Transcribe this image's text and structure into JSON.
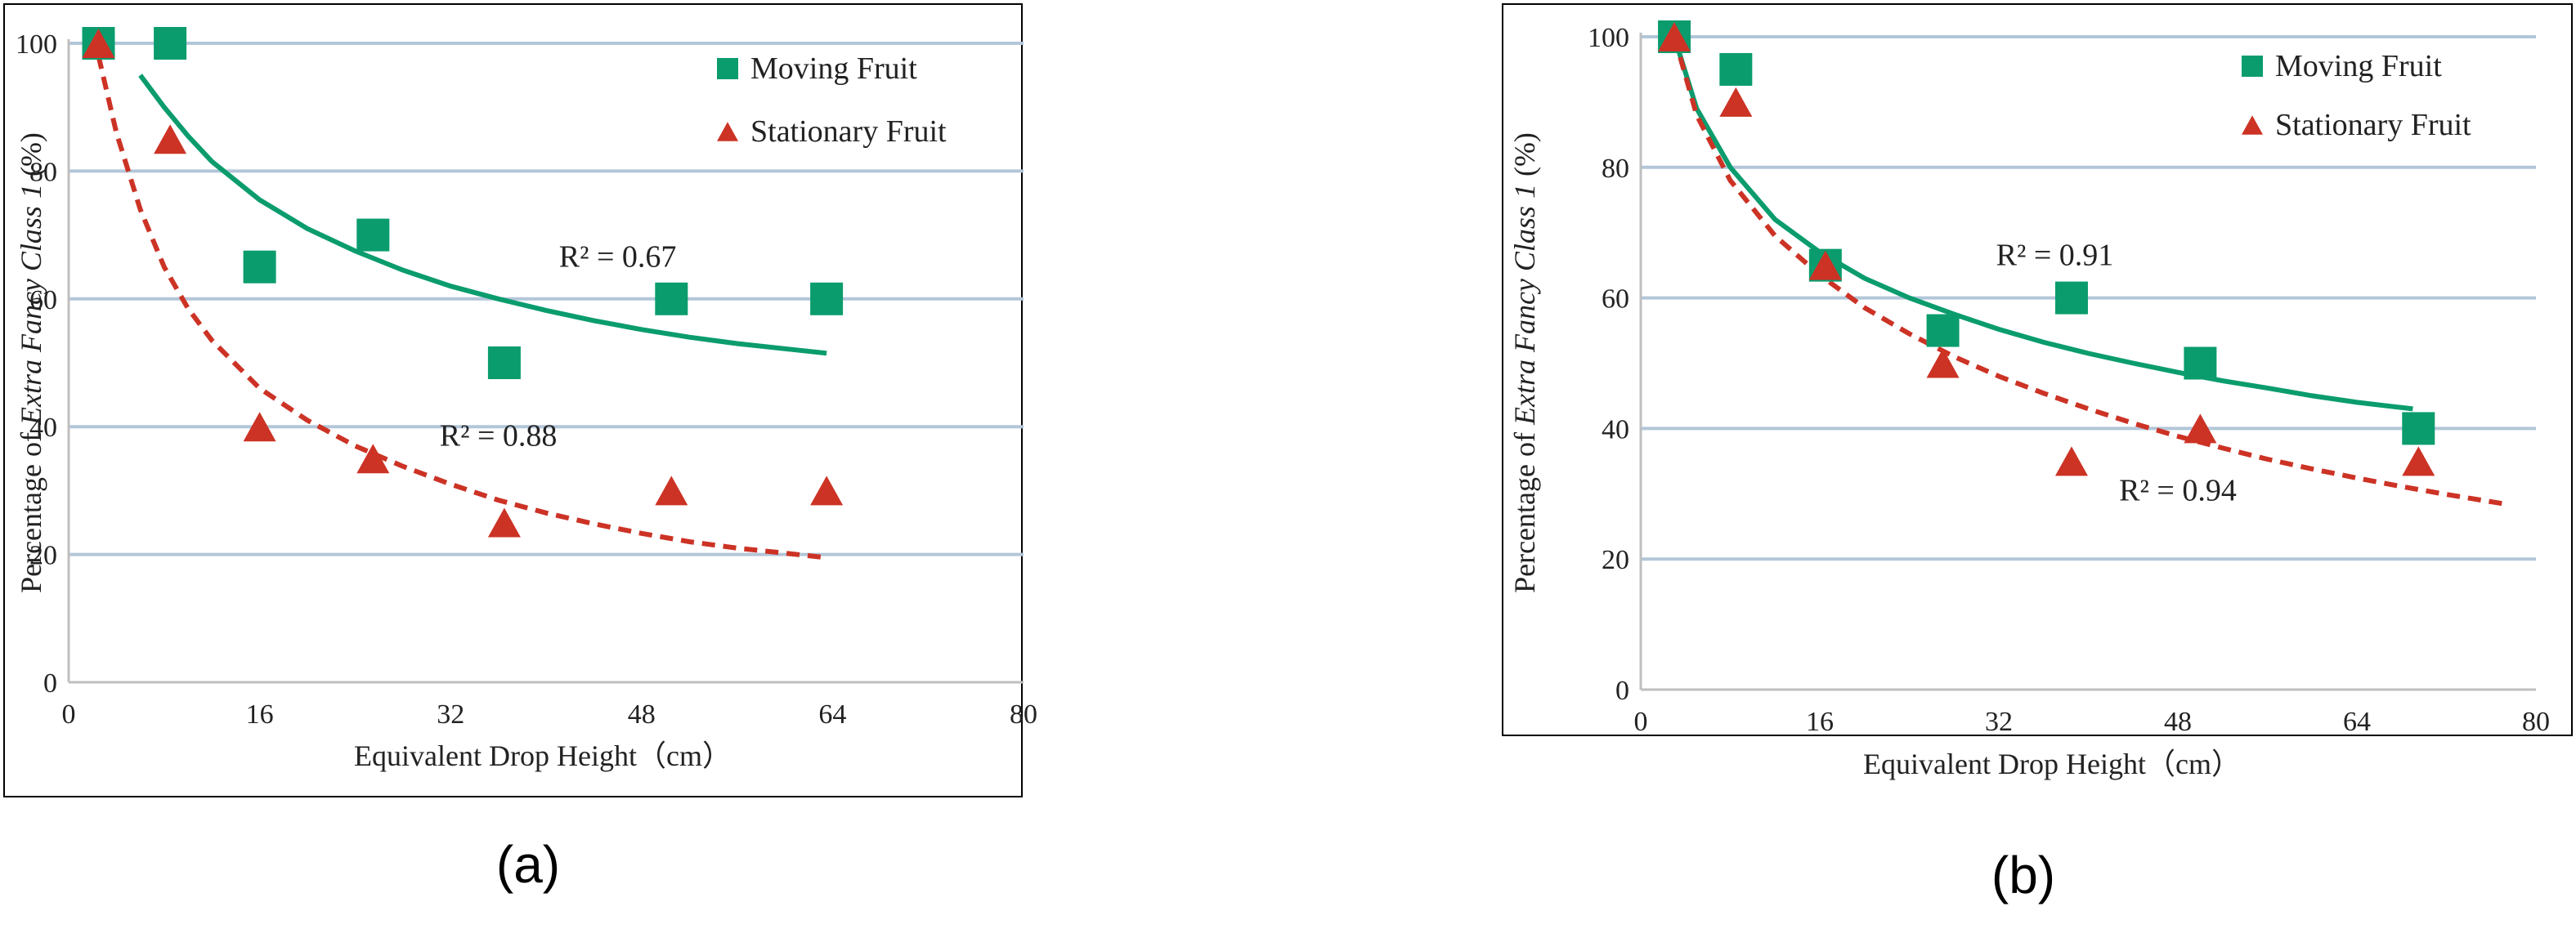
{
  "chart_data": [
    {
      "type": "scatter",
      "panel_label": "(a)",
      "xlabel": "Equivalent Drop Height（cm）",
      "ylabel_parts": [
        "Percentage of ",
        "Extra Fancy Class 1",
        " (%)"
      ],
      "xlim": [
        0,
        80
      ],
      "ylim": [
        0,
        100
      ],
      "xticks": [
        "0",
        "16",
        "32",
        "48",
        "64",
        "80"
      ],
      "yticks": [
        "0",
        "20",
        "40",
        "60",
        "80",
        "100"
      ],
      "legend": [
        "Moving Fruit",
        "Stationary Fruit"
      ],
      "colors": {
        "moving": "#0b9c6e",
        "stationary": "#cc3325"
      },
      "series": [
        {
          "name": "Moving Fruit",
          "marker": "square",
          "x": [
            2.5,
            8.5,
            16,
            25.5,
            36.5,
            50.5,
            63.5
          ],
          "y": [
            100,
            100,
            65,
            70,
            50,
            60,
            60
          ]
        },
        {
          "name": "Stationary Fruit",
          "marker": "triangle",
          "x": [
            2.5,
            8.5,
            16,
            25.5,
            36.5,
            50.5,
            63.5
          ],
          "y": [
            100,
            85,
            40,
            35,
            25,
            30,
            30
          ]
        }
      ],
      "fits": [
        {
          "series": "Moving Fruit",
          "style": "solid",
          "points": [
            [
              6,
              95
            ],
            [
              8,
              90
            ],
            [
              10,
              85.5
            ],
            [
              12,
              81.5
            ],
            [
              16,
              75.5
            ],
            [
              20,
              71
            ],
            [
              24,
              67.5
            ],
            [
              28,
              64.5
            ],
            [
              32,
              62
            ],
            [
              36,
              60
            ],
            [
              40,
              58.2
            ],
            [
              44,
              56.6
            ],
            [
              48,
              55.2
            ],
            [
              52,
              54
            ],
            [
              56,
              53
            ],
            [
              60,
              52.2
            ],
            [
              63.5,
              51.5
            ]
          ],
          "r2_label": "R² = 0.67",
          "r2_at": [
            46,
            65
          ]
        },
        {
          "series": "Stationary Fruit",
          "style": "dashed",
          "points": [
            [
              2.5,
              98
            ],
            [
              4,
              86
            ],
            [
              6,
              74
            ],
            [
              8,
              65
            ],
            [
              10,
              58.5
            ],
            [
              12,
              53.5
            ],
            [
              16,
              46
            ],
            [
              20,
              41
            ],
            [
              24,
              37
            ],
            [
              28,
              33.8
            ],
            [
              32,
              31
            ],
            [
              36,
              28.5
            ],
            [
              40,
              26.5
            ],
            [
              44,
              24.8
            ],
            [
              48,
              23.3
            ],
            [
              52,
              22
            ],
            [
              56,
              21
            ],
            [
              60,
              20.2
            ],
            [
              63.5,
              19.5
            ]
          ],
          "r2_label": "R² = 0.88",
          "r2_at": [
            36,
            37
          ]
        }
      ]
    },
    {
      "type": "scatter",
      "panel_label": "(b)",
      "xlabel": "Equivalent Drop Height（cm）",
      "ylabel_parts": [
        "Percentage of ",
        "Extra Fancy Class 1",
        " (%)"
      ],
      "xlim": [
        0,
        80
      ],
      "ylim": [
        0,
        100
      ],
      "xticks": [
        "0",
        "16",
        "32",
        "48",
        "64",
        "80"
      ],
      "yticks": [
        "0",
        "20",
        "40",
        "60",
        "80",
        "100"
      ],
      "legend": [
        "Moving Fruit",
        "Stationary Fruit"
      ],
      "colors": {
        "moving": "#0b9c6e",
        "stationary": "#cc3325"
      },
      "series": [
        {
          "name": "Moving Fruit",
          "marker": "square",
          "x": [
            3,
            8.5,
            16.5,
            27,
            38.5,
            50,
            69.5
          ],
          "y": [
            100,
            95,
            65,
            55,
            60,
            50,
            40
          ]
        },
        {
          "name": "Stationary Fruit",
          "marker": "triangle",
          "x": [
            3,
            8.5,
            16.5,
            27,
            38.5,
            50,
            69.5
          ],
          "y": [
            100,
            90,
            65,
            50,
            35,
            40,
            35
          ]
        }
      ],
      "fits": [
        {
          "series": "Moving Fruit",
          "style": "solid",
          "points": [
            [
              3,
              100
            ],
            [
              5,
              89
            ],
            [
              8,
              80
            ],
            [
              12,
              72
            ],
            [
              16,
              67
            ],
            [
              20,
              63
            ],
            [
              24,
              60
            ],
            [
              28,
              57.5
            ],
            [
              32,
              55.2
            ],
            [
              36,
              53.2
            ],
            [
              40,
              51.5
            ],
            [
              44,
              50
            ],
            [
              48,
              48.6
            ],
            [
              52,
              47.3
            ],
            [
              56,
              46.2
            ],
            [
              60,
              45
            ],
            [
              64,
              44
            ],
            [
              69,
              43
            ]
          ],
          "r2_label": "R² = 0.91",
          "r2_at": [
            37,
            65
          ]
        },
        {
          "series": "Stationary Fruit",
          "style": "dashed",
          "points": [
            [
              3,
              100
            ],
            [
              5,
              88
            ],
            [
              8,
              78
            ],
            [
              12,
              69.5
            ],
            [
              16,
              63.5
            ],
            [
              20,
              58.5
            ],
            [
              24,
              54.5
            ],
            [
              28,
              51
            ],
            [
              32,
              48
            ],
            [
              36,
              45.4
            ],
            [
              40,
              43
            ],
            [
              44,
              40.8
            ],
            [
              48,
              38.8
            ],
            [
              52,
              37
            ],
            [
              56,
              35.3
            ],
            [
              60,
              33.8
            ],
            [
              64,
              32.4
            ],
            [
              68,
              31.1
            ],
            [
              72,
              29.9
            ],
            [
              77,
              28.5
            ]
          ],
          "r2_label": "R² = 0.94",
          "r2_at": [
            48,
            29
          ]
        }
      ]
    }
  ]
}
